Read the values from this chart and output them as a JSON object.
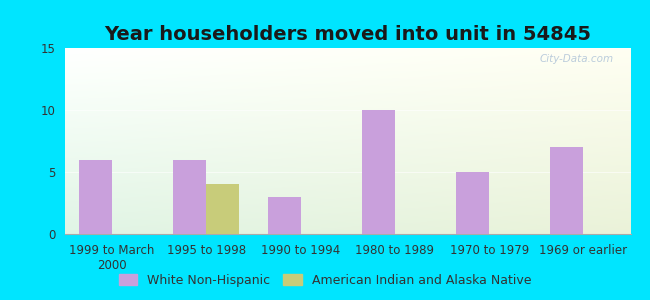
{
  "title": "Year householders moved into unit in 54845",
  "categories": [
    "1999 to March\n2000",
    "1995 to 1998",
    "1990 to 1994",
    "1980 to 1989",
    "1970 to 1979",
    "1969 or earlier"
  ],
  "white_non_hispanic": [
    6,
    6,
    3,
    10,
    5,
    7
  ],
  "american_indian": [
    0,
    4,
    0,
    0,
    0,
    0
  ],
  "white_color": "#c9a0dc",
  "american_indian_color": "#c8cc7a",
  "bar_width": 0.35,
  "ylim": [
    0,
    15
  ],
  "yticks": [
    0,
    5,
    10,
    15
  ],
  "bg_outer": "#00e5ff",
  "title_fontsize": 14,
  "tick_fontsize": 8.5,
  "legend_fontsize": 9,
  "bg_gradient_top_left": "#e8f5e9",
  "bg_gradient_bottom_right": "#c8e6c9",
  "grid_color": "#e0e0e0"
}
